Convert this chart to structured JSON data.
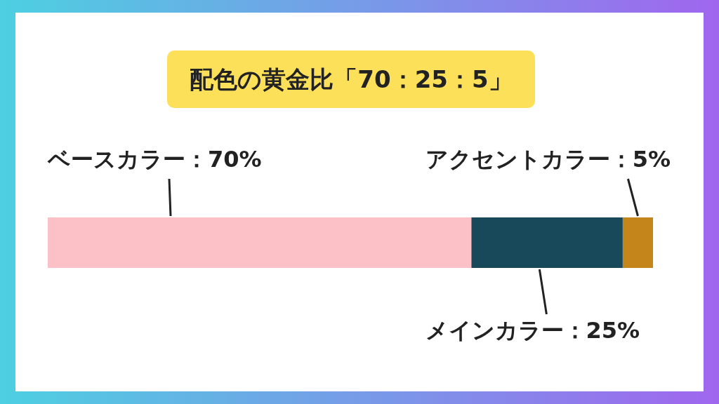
{
  "chart_data": {
    "type": "bar",
    "title": "配色の黄金比「70：25：5」",
    "orientation": "horizontal",
    "stacked": true,
    "categories": [
      null
    ],
    "xlim": [
      0,
      100
    ],
    "series": [
      {
        "name": "ベースカラー",
        "color": "#fbc1c7",
        "values": [
          70
        ],
        "value_labels": [
          "：70%"
        ]
      },
      {
        "name": "メインカラー",
        "color": "#17495a",
        "values": [
          25
        ],
        "value_labels": [
          "：25%"
        ]
      },
      {
        "name": "アクセントカラー",
        "color": "#c4861a",
        "values": [
          5
        ],
        "value_labels": [
          "：5%"
        ]
      }
    ]
  }
}
